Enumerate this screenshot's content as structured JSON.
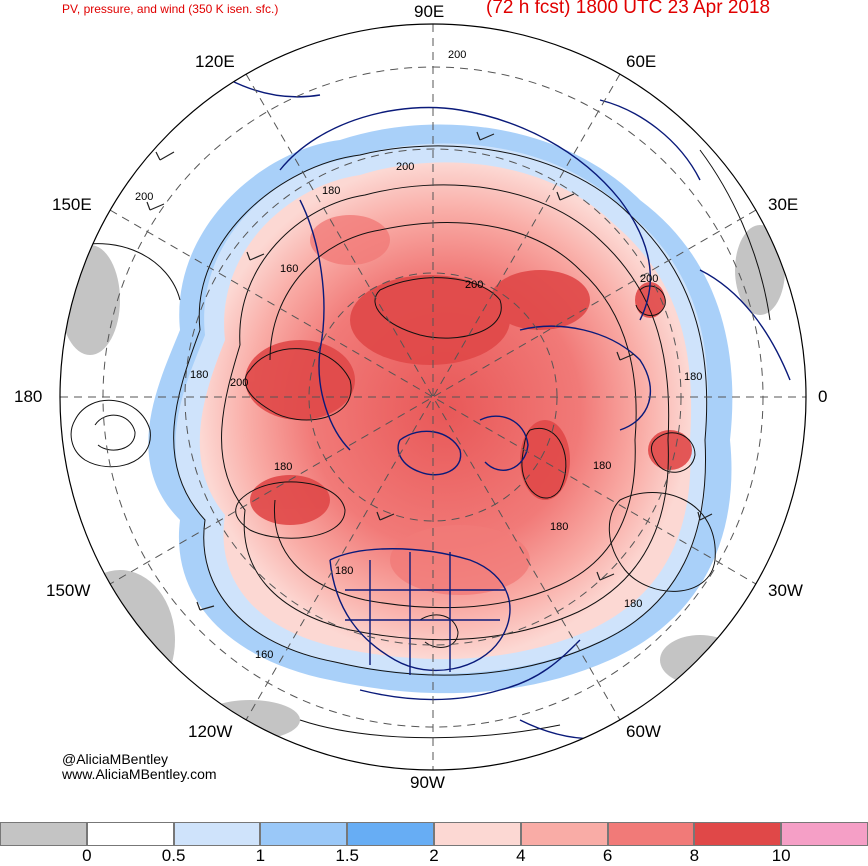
{
  "header": {
    "title_left": "PV, pressure, and wind (350 K isen. sfc.)",
    "title_right": "(72 h fcst) 1800 UTC 23 Apr 2018"
  },
  "longitude_labels": {
    "deg90E": "90E",
    "deg60E": "60E",
    "deg120E": "120E",
    "deg150E": "150E",
    "deg30E": "30E",
    "deg180": "180",
    "deg0": "0",
    "deg150W": "150W",
    "deg30W": "30W",
    "deg120W": "120W",
    "deg60W": "60W",
    "deg90W": "90W"
  },
  "contour_labels": [
    "200",
    "200",
    "200",
    "180",
    "200",
    "200",
    "160",
    "180",
    "200",
    "180",
    "180",
    "180",
    "180",
    "200",
    "180",
    "180",
    "160",
    "180"
  ],
  "credit": {
    "handle": "@AliciaMBentley",
    "site": "www.AliciaMBentley.com"
  },
  "colorbar": {
    "colors": [
      "#c4c4c4",
      "#ffffff",
      "#cfe3fb",
      "#9ac8f8",
      "#67adf4",
      "#fcd8d3",
      "#f9aca6",
      "#f17a78",
      "#e04848",
      "#f59fc6"
    ],
    "ticks": [
      "0",
      "0.5",
      "1",
      "1.5",
      "2",
      "4",
      "6",
      "8",
      "10"
    ]
  }
}
